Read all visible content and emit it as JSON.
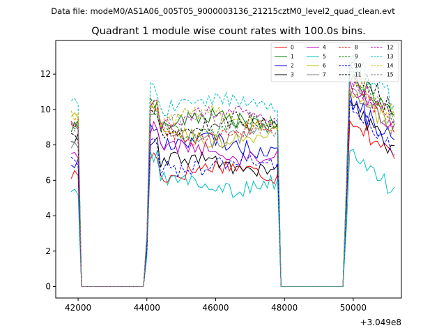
{
  "page": {
    "suptitle": "Data file: modeM0/AS1A06_005T05_9000003136_21215cztM0_level2_quad_clean.evt",
    "title": "Quadrant 1 module wise count rates with 100.0s bins."
  },
  "chart_data": {
    "type": "line",
    "title": "Quadrant 1 module wise count rates with 100.0s bins.",
    "xlabel": "",
    "ylabel": "",
    "x_offset_label": "+3.049e8",
    "xlim": [
      41350,
      51400
    ],
    "ylim": [
      -0.65,
      13.9
    ],
    "xticks": [
      42000,
      44000,
      46000,
      48000,
      50000
    ],
    "xtick_labels": [
      "42000",
      "44000",
      "46000",
      "48000",
      "50000"
    ],
    "yticks": [
      0,
      2,
      4,
      6,
      8,
      10,
      12
    ],
    "ytick_labels": [
      "0",
      "2",
      "4",
      "6",
      "8",
      "10",
      "12"
    ],
    "legend_position": "upper right",
    "segments": [
      {
        "start": 41800,
        "end": 42100,
        "level": "on"
      },
      {
        "start": 42100,
        "end": 44000,
        "level": "zero"
      },
      {
        "start": 44000,
        "end": 47900,
        "level": "on"
      },
      {
        "start": 47900,
        "end": 49800,
        "level": "zero"
      },
      {
        "start": 49800,
        "end": 51200,
        "level": "on"
      }
    ],
    "series": [
      {
        "name": "0",
        "color": "#ff0000",
        "dash": "solid",
        "mean": 6.5,
        "seg1": 6.3,
        "seg3": 8.5
      },
      {
        "name": "1",
        "color": "#008000",
        "dash": "solid",
        "mean": 9.3,
        "seg1": 8.9,
        "seg3": 10.8
      },
      {
        "name": "2",
        "color": "#0000ff",
        "dash": "solid",
        "mean": 8.0,
        "seg1": 7.0,
        "seg3": 9.4
      },
      {
        "name": "3",
        "color": "#000000",
        "dash": "solid",
        "mean": 6.9,
        "seg1": 8.3,
        "seg3": 9.0
      },
      {
        "name": "4",
        "color": "#bf00bf",
        "dash": "solid",
        "mean": 7.6,
        "seg1": 7.6,
        "seg3": 10.3
      },
      {
        "name": "5",
        "color": "#00bfbf",
        "dash": "solid",
        "mean": 5.8,
        "seg1": 5.4,
        "seg3": 6.5
      },
      {
        "name": "6",
        "color": "#bfbf00",
        "dash": "solid",
        "mean": 8.5,
        "seg1": 9.6,
        "seg3": 10.0
      },
      {
        "name": "7",
        "color": "#808080",
        "dash": "solid",
        "mean": 8.6,
        "seg1": 7.8,
        "seg3": 9.9
      },
      {
        "name": "8",
        "color": "#ff0000",
        "dash": "dashed",
        "mean": 8.7,
        "seg1": 9.3,
        "seg3": 10.5
      },
      {
        "name": "9",
        "color": "#008000",
        "dash": "dashed",
        "mean": 8.9,
        "seg1": 9.1,
        "seg3": 10.9
      },
      {
        "name": "10",
        "color": "#0000ff",
        "dash": "dashed",
        "mean": 6.9,
        "seg1": 7.2,
        "seg3": 9.1
      },
      {
        "name": "11",
        "color": "#000000",
        "dash": "dashed",
        "mean": 9.1,
        "seg1": 8.5,
        "seg3": 11.3
      },
      {
        "name": "12",
        "color": "#bf00bf",
        "dash": "dashed",
        "mean": 9.6,
        "seg1": 9.0,
        "seg3": 10.6
      },
      {
        "name": "13",
        "color": "#00bfbf",
        "dash": "dashed",
        "mean": 10.3,
        "seg1": 10.3,
        "seg3": 11.7
      },
      {
        "name": "14",
        "color": "#bfbf00",
        "dash": "dashed",
        "mean": 9.5,
        "seg1": 9.7,
        "seg3": 10.9
      },
      {
        "name": "15",
        "color": "#808080",
        "dash": "dashed",
        "mean": 9.2,
        "seg1": 9.0,
        "seg3": 10.5
      }
    ]
  }
}
